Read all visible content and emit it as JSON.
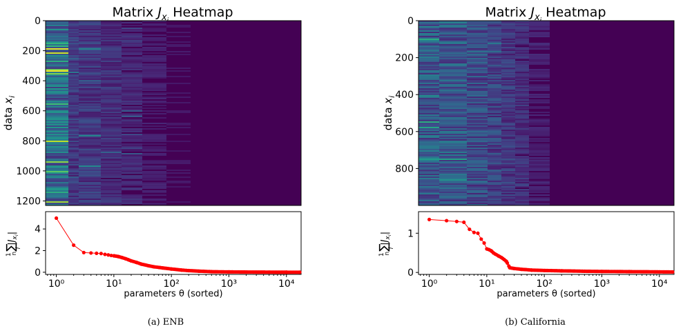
{
  "chart_data": [
    {
      "panel_id": "enb",
      "caption": "(a) ENB",
      "heatmap": {
        "type": "heatmap",
        "title_prefix": "Matrix ",
        "title_var": "J",
        "title_sub": "x",
        "title_subsub": "i",
        "title_suffix": " Heatmap",
        "ylabel_prefix": "data ",
        "ylabel_var": "x",
        "ylabel_sub": "i",
        "rows": 1230,
        "ylim": [
          0,
          1230
        ],
        "yticks": [
          "0",
          "200",
          "400",
          "600",
          "800",
          "1000",
          "1200"
        ],
        "ytick_values": [
          0,
          200,
          400,
          600,
          800,
          1000,
          1200
        ]
      },
      "line": {
        "type": "line",
        "xscale": "log",
        "xlim": [
          0.65,
          18000
        ],
        "ylim": [
          -0.2,
          5.6
        ],
        "xlabel": "parameters θ (sorted)",
        "ylabel": "1/n ∑_i |J_{x_i}|",
        "xticks": [
          "10⁰",
          "10¹",
          "10²",
          "10³",
          "10⁴"
        ],
        "xtick_values": [
          1,
          10,
          100,
          1000,
          10000
        ],
        "yticks": [
          "0",
          "2",
          "4"
        ],
        "ytick_values": [
          0,
          2,
          4
        ],
        "color": "#ff0000",
        "points": [
          [
            1,
            5.0
          ],
          [
            2,
            2.5
          ],
          [
            3,
            1.82
          ],
          [
            4,
            1.78
          ],
          [
            5,
            1.75
          ],
          [
            6,
            1.73
          ],
          [
            7,
            1.65
          ],
          [
            8,
            1.6
          ],
          [
            9,
            1.55
          ],
          [
            10,
            1.52
          ],
          [
            12,
            1.45
          ],
          [
            14,
            1.35
          ],
          [
            16,
            1.25
          ],
          [
            18,
            1.15
          ],
          [
            20,
            1.05
          ],
          [
            25,
            0.9
          ],
          [
            30,
            0.75
          ],
          [
            40,
            0.6
          ],
          [
            50,
            0.5
          ],
          [
            70,
            0.4
          ],
          [
            100,
            0.3
          ],
          [
            150,
            0.2
          ],
          [
            200,
            0.15
          ],
          [
            300,
            0.1
          ],
          [
            500,
            0.05
          ],
          [
            1000,
            0.03
          ],
          [
            2000,
            0.02
          ],
          [
            5000,
            0.01
          ],
          [
            10000,
            0.005
          ],
          [
            17000,
            0.003
          ]
        ]
      }
    },
    {
      "panel_id": "california",
      "caption": "(b) California",
      "heatmap": {
        "type": "heatmap",
        "title_prefix": "Matrix ",
        "title_var": "J",
        "title_sub": "x",
        "title_subsub": "i",
        "title_suffix": " Heatmap",
        "ylabel_prefix": "data ",
        "ylabel_var": "x",
        "ylabel_sub": "i",
        "rows": 1000,
        "ylim": [
          0,
          1000
        ],
        "yticks": [
          "0",
          "200",
          "400",
          "600",
          "800"
        ],
        "ytick_values": [
          0,
          200,
          400,
          600,
          800
        ]
      },
      "line": {
        "type": "line",
        "xscale": "log",
        "xlim": [
          0.65,
          18000
        ],
        "ylim": [
          -0.05,
          1.55
        ],
        "xlabel": "parameters θ (sorted)",
        "ylabel": "1/n ∑_i |J_{x_i}|",
        "xticks": [
          "10⁰",
          "10¹",
          "10²",
          "10³",
          "10⁴"
        ],
        "xtick_values": [
          1,
          10,
          100,
          1000,
          10000
        ],
        "yticks": [
          "0",
          "1"
        ],
        "ytick_values": [
          0,
          1
        ],
        "color": "#ff0000",
        "points": [
          [
            1,
            1.35
          ],
          [
            2,
            1.32
          ],
          [
            3,
            1.3
          ],
          [
            4,
            1.28
          ],
          [
            5,
            1.1
          ],
          [
            6,
            1.02
          ],
          [
            7,
            1.0
          ],
          [
            8,
            0.85
          ],
          [
            9,
            0.75
          ],
          [
            10,
            0.6
          ],
          [
            11,
            0.58
          ],
          [
            12,
            0.55
          ],
          [
            13,
            0.5
          ],
          [
            14,
            0.47
          ],
          [
            16,
            0.42
          ],
          [
            18,
            0.38
          ],
          [
            20,
            0.33
          ],
          [
            22,
            0.28
          ],
          [
            25,
            0.12
          ],
          [
            30,
            0.1
          ],
          [
            40,
            0.08
          ],
          [
            60,
            0.06
          ],
          [
            100,
            0.05
          ],
          [
            200,
            0.04
          ],
          [
            500,
            0.03
          ],
          [
            1000,
            0.025
          ],
          [
            3000,
            0.02
          ],
          [
            10000,
            0.015
          ],
          [
            17000,
            0.012
          ]
        ]
      }
    }
  ]
}
